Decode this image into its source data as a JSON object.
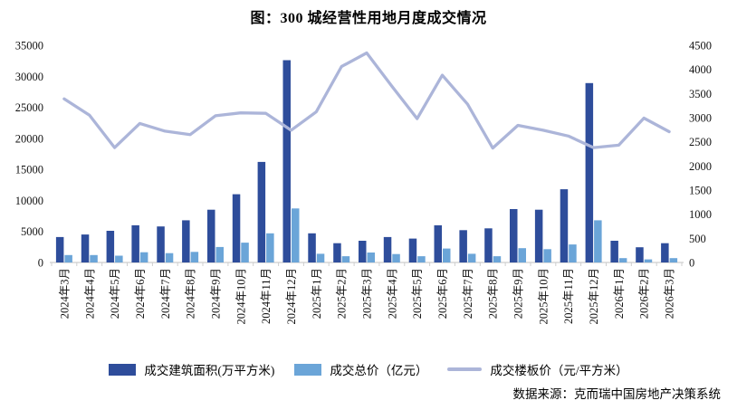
{
  "title": "图：300 城经营性用地月度成交情况",
  "source": "数据来源：克而瑞中国房地产决策系统",
  "legend": [
    {
      "label": "成交建筑面积(万平方米)",
      "type": "bar",
      "color": "#2E4D9B"
    },
    {
      "label": "成交总价（亿元）",
      "type": "bar",
      "color": "#6BA5D8"
    },
    {
      "label": "成交楼板价（元/平方米）",
      "type": "line",
      "color": "#ACB5D9"
    }
  ],
  "chart_data": {
    "type": "bar",
    "subtype": "grouped bars with secondary-axis line",
    "title": "图：300 城经营性用地月度成交情况",
    "xlabel": "",
    "ylabel_left": "",
    "ylabel_right": "",
    "grid": false,
    "legend_position": "bottom",
    "categories": [
      "2024年3月",
      "2024年4月",
      "2024年5月",
      "2024年6月",
      "2024年7月",
      "2024年8月",
      "2024年9月",
      "2024年10月",
      "2024年11月",
      "2024年12月",
      "2025年1月",
      "2025年2月",
      "2025年3月",
      "2025年4月",
      "2025年5月",
      "2025年6月",
      "2025年7月",
      "2025年8月",
      "2025年9月",
      "2025年10月",
      "2025年11月",
      "2025年12月",
      "2026年1月",
      "2026年2月",
      "2026年3月"
    ],
    "series": [
      {
        "name": "成交建筑面积(万平方米)",
        "type": "bar",
        "axis": "left",
        "color": "#2E4D9B",
        "values": [
          4100,
          4500,
          5100,
          6000,
          5800,
          6800,
          8500,
          11000,
          16200,
          32600,
          4700,
          3100,
          3500,
          4100,
          3850,
          6000,
          5200,
          5500,
          8600,
          8500,
          11800,
          28900,
          3500,
          2450,
          3100
        ]
      },
      {
        "name": "成交总价（亿元）",
        "type": "bar",
        "axis": "left",
        "color": "#6BA5D8",
        "values": [
          1200,
          1200,
          1100,
          1650,
          1500,
          1700,
          2500,
          3200,
          4700,
          8700,
          1400,
          1000,
          1600,
          1350,
          1000,
          2250,
          1400,
          1000,
          2300,
          2150,
          2900,
          6800,
          700,
          500,
          700
        ]
      },
      {
        "name": "成交楼板价（元/平方米）",
        "type": "line",
        "axis": "right",
        "color": "#ACB5D9",
        "values": [
          3390,
          3050,
          2380,
          2880,
          2720,
          2650,
          3040,
          3100,
          3090,
          2740,
          3120,
          4060,
          4340,
          3650,
          2980,
          3880,
          3280,
          2370,
          2840,
          2740,
          2620,
          2380,
          2430,
          2990,
          2710
        ]
      }
    ],
    "left_axis": {
      "min": 0,
      "max": 35000,
      "step": 5000,
      "ticks": [
        0,
        5000,
        10000,
        15000,
        20000,
        25000,
        30000,
        35000
      ]
    },
    "right_axis": {
      "min": 0,
      "max": 4500,
      "step": 500,
      "ticks": [
        0,
        500,
        1000,
        1500,
        2000,
        2500,
        3000,
        3500,
        4000,
        4500
      ]
    }
  }
}
